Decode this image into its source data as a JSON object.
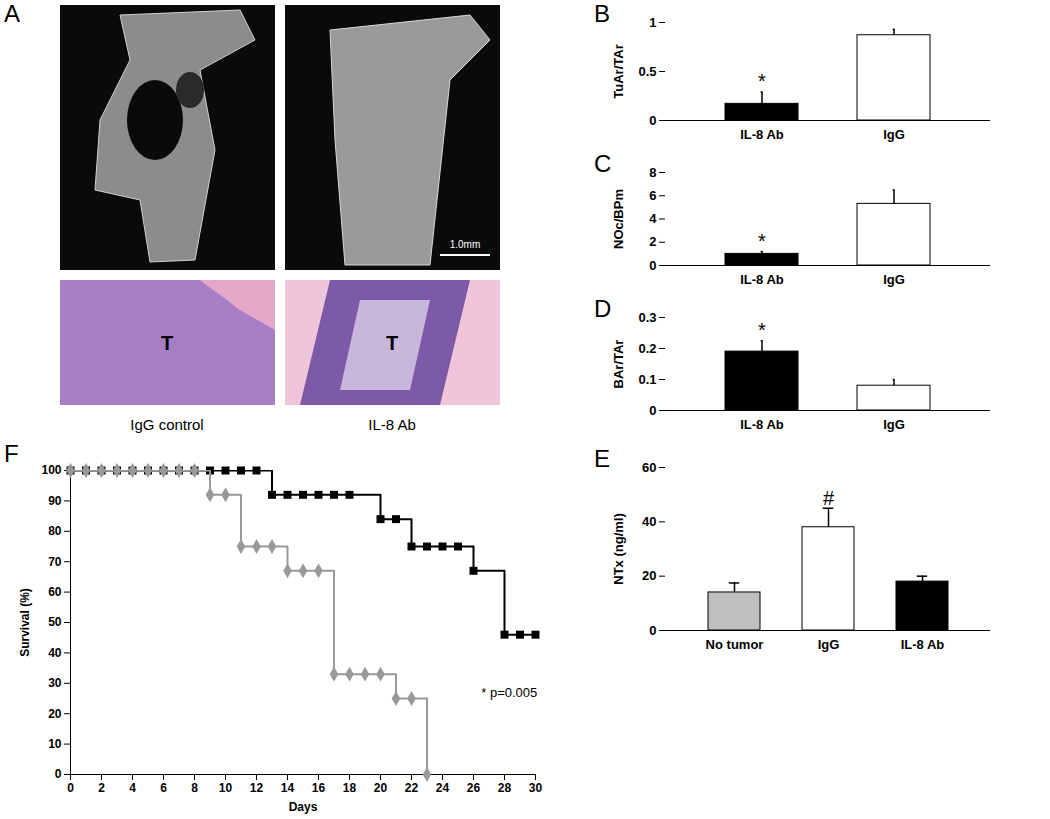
{
  "chart_data": [
    {
      "type": "image",
      "title": "A",
      "captions": [
        "IgG control",
        "IL-8 Ab"
      ],
      "labels": [
        "T",
        "T"
      ],
      "scale_bar": "1.0mm"
    },
    {
      "type": "bar",
      "title": "B",
      "ylabel": "TuAr/TAr",
      "categories": [
        "IL-8 Ab",
        "IgG"
      ],
      "values": [
        0.17,
        0.87
      ],
      "errors": [
        0.12,
        0.06
      ],
      "colors": [
        "#000000",
        "#ffffff"
      ],
      "ylim": [
        0,
        1
      ],
      "yticks": [
        0,
        0.5,
        1
      ],
      "annotations": [
        {
          "category": "IL-8 Ab",
          "text": "*"
        }
      ]
    },
    {
      "type": "bar",
      "title": "C",
      "ylabel": "NOc/BPm",
      "categories": [
        "IL-8 Ab",
        "IgG"
      ],
      "values": [
        1.0,
        5.3
      ],
      "errors": [
        0.2,
        1.2
      ],
      "colors": [
        "#000000",
        "#ffffff"
      ],
      "ylim": [
        0,
        8
      ],
      "yticks": [
        0,
        2,
        4,
        6,
        8
      ],
      "annotations": [
        {
          "category": "IL-8 Ab",
          "text": "*"
        }
      ]
    },
    {
      "type": "bar",
      "title": "D",
      "ylabel": "BAr/TAr",
      "categories": [
        "IL-8 Ab",
        "IgG"
      ],
      "values": [
        0.19,
        0.08
      ],
      "errors": [
        0.035,
        0.02
      ],
      "colors": [
        "#000000",
        "#ffffff"
      ],
      "ylim": [
        0,
        0.3
      ],
      "yticks": [
        0,
        0.1,
        0.2,
        0.3
      ],
      "annotations": [
        {
          "category": "IL-8 Ab",
          "text": "*"
        }
      ]
    },
    {
      "type": "bar",
      "title": "E",
      "ylabel": "NTx (ng/ml)",
      "categories": [
        "No tumor",
        "IgG",
        "IL-8 Ab"
      ],
      "values": [
        14,
        38,
        18
      ],
      "errors": [
        3.5,
        7,
        2
      ],
      "colors": [
        "#bfbfbf",
        "#ffffff",
        "#000000"
      ],
      "ylim": [
        0,
        60
      ],
      "yticks": [
        0,
        20,
        40,
        60
      ],
      "annotations": [
        {
          "category": "IgG",
          "text": "#"
        }
      ]
    },
    {
      "type": "line",
      "title": "F",
      "xlabel": "Days",
      "ylabel": "Survival (%)",
      "xlim": [
        0,
        30
      ],
      "xticks": [
        0,
        2,
        4,
        6,
        8,
        10,
        12,
        14,
        16,
        18,
        20,
        22,
        24,
        26,
        28,
        30
      ],
      "ylim": [
        0,
        100
      ],
      "yticks": [
        0,
        10,
        20,
        30,
        40,
        50,
        60,
        70,
        80,
        90,
        100
      ],
      "series": [
        {
          "color": "#000000",
          "marker": "square",
          "line_style": "step",
          "x": [
            0,
            1,
            2,
            3,
            4,
            5,
            6,
            7,
            8,
            9,
            10,
            11,
            12,
            13,
            14,
            15,
            16,
            17,
            18,
            20,
            21,
            22,
            23,
            24,
            25,
            26,
            28,
            29,
            30
          ],
          "values": [
            100,
            100,
            100,
            100,
            100,
            100,
            100,
            100,
            100,
            100,
            100,
            100,
            100,
            92,
            92,
            92,
            92,
            92,
            92,
            84,
            84,
            75,
            75,
            75,
            75,
            67,
            46,
            46,
            46
          ]
        },
        {
          "color": "#999999",
          "marker": "diamond",
          "line_style": "step",
          "x": [
            0,
            1,
            2,
            3,
            4,
            5,
            6,
            7,
            8,
            9,
            10,
            11,
            12,
            13,
            14,
            15,
            16,
            17,
            18,
            19,
            20,
            21,
            22,
            23
          ],
          "values": [
            100,
            100,
            100,
            100,
            100,
            100,
            100,
            100,
            100,
            92,
            92,
            75,
            75,
            75,
            67,
            67,
            67,
            33,
            33,
            33,
            33,
            25,
            25,
            0
          ]
        }
      ],
      "annotations": [
        {
          "x": 26.5,
          "y": 27,
          "text": "* p=0.005"
        }
      ]
    }
  ]
}
